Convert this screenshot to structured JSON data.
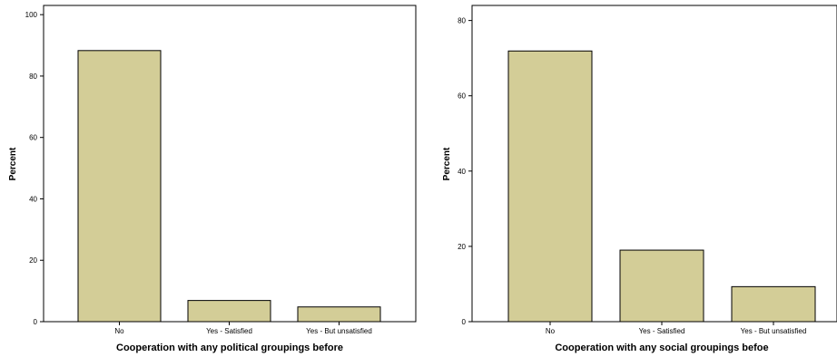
{
  "chart_data": [
    {
      "type": "bar",
      "categories": [
        "No",
        "Yes - Satisfied",
        "Yes - But unsatisfied"
      ],
      "values": [
        88.3,
        6.9,
        4.8
      ],
      "xlabel": "Cooperation with any political groupings before",
      "ylabel": "Percent",
      "ylim": [
        0,
        103
      ],
      "yticks": [
        0,
        20,
        40,
        60,
        80,
        100
      ],
      "grid": false,
      "bar_color": "#d3cd97",
      "bar_edge_color": "#000000"
    },
    {
      "type": "bar",
      "categories": [
        "No",
        "Yes - Satisfied",
        "Yes - But unsatisfied"
      ],
      "values": [
        71.9,
        19.0,
        9.3
      ],
      "xlabel": "Cooperation with any social groupings befoe",
      "ylabel": "Percent",
      "ylim": [
        0,
        84
      ],
      "yticks": [
        0,
        20,
        40,
        60,
        80
      ],
      "grid": false,
      "bar_color": "#d3cd97",
      "bar_edge_color": "#000000"
    }
  ]
}
